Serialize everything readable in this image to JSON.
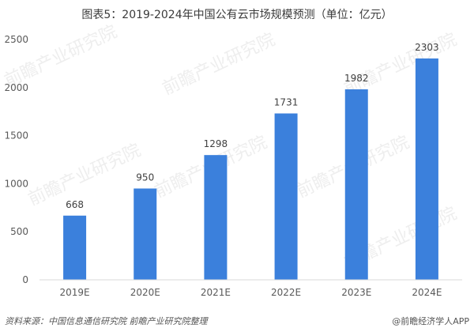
{
  "title": "图表5：2019-2024年中国公有云市场规模预测（单位：亿元）",
  "chart_data": {
    "type": "bar",
    "categories": [
      "2019E",
      "2020E",
      "2021E",
      "2022E",
      "2023E",
      "2024E"
    ],
    "values": [
      668,
      950,
      1298,
      1731,
      1982,
      2303
    ],
    "data_labels": [
      "668",
      "950",
      "1298",
      "1731",
      "1982",
      "2303"
    ],
    "ylim": [
      0,
      2500
    ],
    "yticks": [
      0,
      500,
      1000,
      1500,
      2000,
      2500
    ],
    "ytick_labels": [
      "0",
      "500",
      "1000",
      "1500",
      "2000",
      "2500"
    ],
    "xlabel": "",
    "ylabel": "",
    "grid": false,
    "legend": "none",
    "bar_color": "#3b80dc"
  },
  "footer": {
    "source": "资料来源：中国信息通信研究院 前瞻产业研究院整理",
    "credit": "@前瞻经济学人APP"
  },
  "watermark": {
    "text": "前瞻产业研究院"
  }
}
